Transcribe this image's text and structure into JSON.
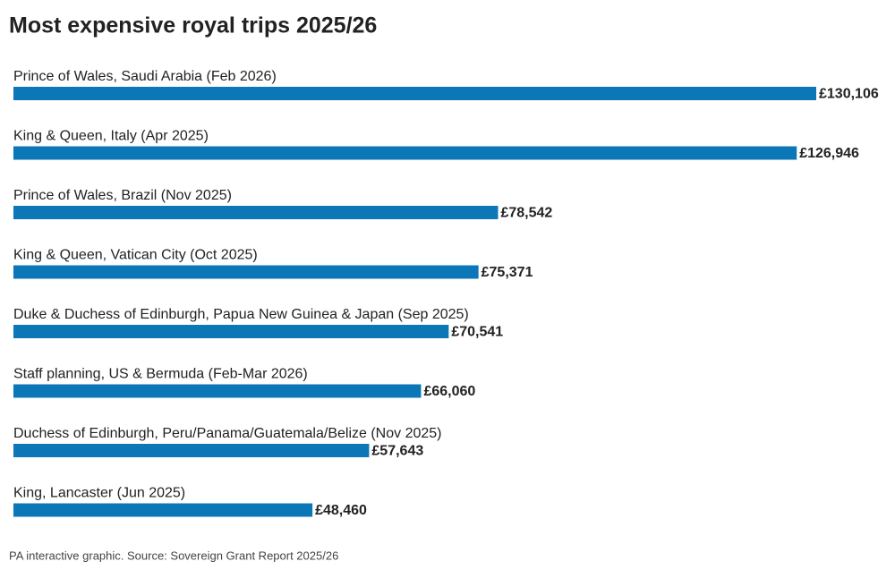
{
  "chart_data": {
    "type": "hbar",
    "title": "Most expensive royal trips 2025/26",
    "categories": [
      "Prince of Wales, Saudi Arabia (Feb 2026)",
      "King & Queen, Italy (Apr 2025)",
      "Prince of Wales, Brazil (Nov 2025)",
      "King & Queen, Vatican City (Oct 2025)",
      "Duke & Duchess of Edinburgh, Papua New Guinea & Japan (Sep 2025)",
      "Staff planning, US & Bermuda (Feb-Mar 2026)",
      "Duchess of Edinburgh, Peru/Panama/Guatemala/Belize (Nov 2025)",
      "King, Lancaster (Jun 2025)"
    ],
    "values": [
      130106,
      126946,
      78542,
      75371,
      70541,
      66060,
      57643,
      48460
    ],
    "value_labels": [
      "£130,106",
      "£126,946",
      "£78,542",
      "£75,371",
      "£70,541",
      "£66,060",
      "£57,643",
      "£48,460"
    ],
    "color": "#0b77b6",
    "source": "PA interactive graphic. Source: Sovereign Grant Report 2025/26"
  }
}
